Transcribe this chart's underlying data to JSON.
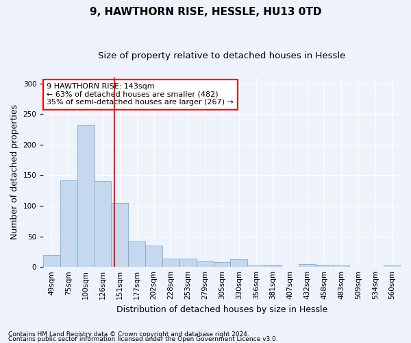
{
  "title1": "9, HAWTHORN RISE, HESSLE, HU13 0TD",
  "title2": "Size of property relative to detached houses in Hessle",
  "xlabel": "Distribution of detached houses by size in Hessle",
  "ylabel": "Number of detached properties",
  "categories": [
    "49sqm",
    "75sqm",
    "100sqm",
    "126sqm",
    "151sqm",
    "177sqm",
    "202sqm",
    "228sqm",
    "253sqm",
    "279sqm",
    "305sqm",
    "330sqm",
    "356sqm",
    "381sqm",
    "407sqm",
    "432sqm",
    "458sqm",
    "483sqm",
    "509sqm",
    "534sqm",
    "560sqm"
  ],
  "values": [
    19,
    142,
    232,
    140,
    105,
    42,
    35,
    14,
    14,
    9,
    8,
    13,
    3,
    4,
    0,
    5,
    4,
    3,
    0,
    0,
    2
  ],
  "bar_color": "#c5d8ed",
  "bar_edge_color": "#7aafd4",
  "vline_color": "red",
  "annotation_text": "9 HAWTHORN RISE: 143sqm\n← 63% of detached houses are smaller (482)\n35% of semi-detached houses are larger (267) →",
  "annotation_box_color": "white",
  "annotation_box_edge": "red",
  "footnote1": "Contains HM Land Registry data © Crown copyright and database right 2024.",
  "footnote2": "Contains public sector information licensed under the Open Government Licence v3.0.",
  "ylim": [
    0,
    310
  ],
  "background_color": "#eef2fb",
  "grid_color": "white",
  "title1_fontsize": 11,
  "title2_fontsize": 9.5,
  "ylabel_fontsize": 9,
  "xlabel_fontsize": 9,
  "tick_fontsize": 7.5,
  "annot_fontsize": 8,
  "footnote_fontsize": 6.5
}
